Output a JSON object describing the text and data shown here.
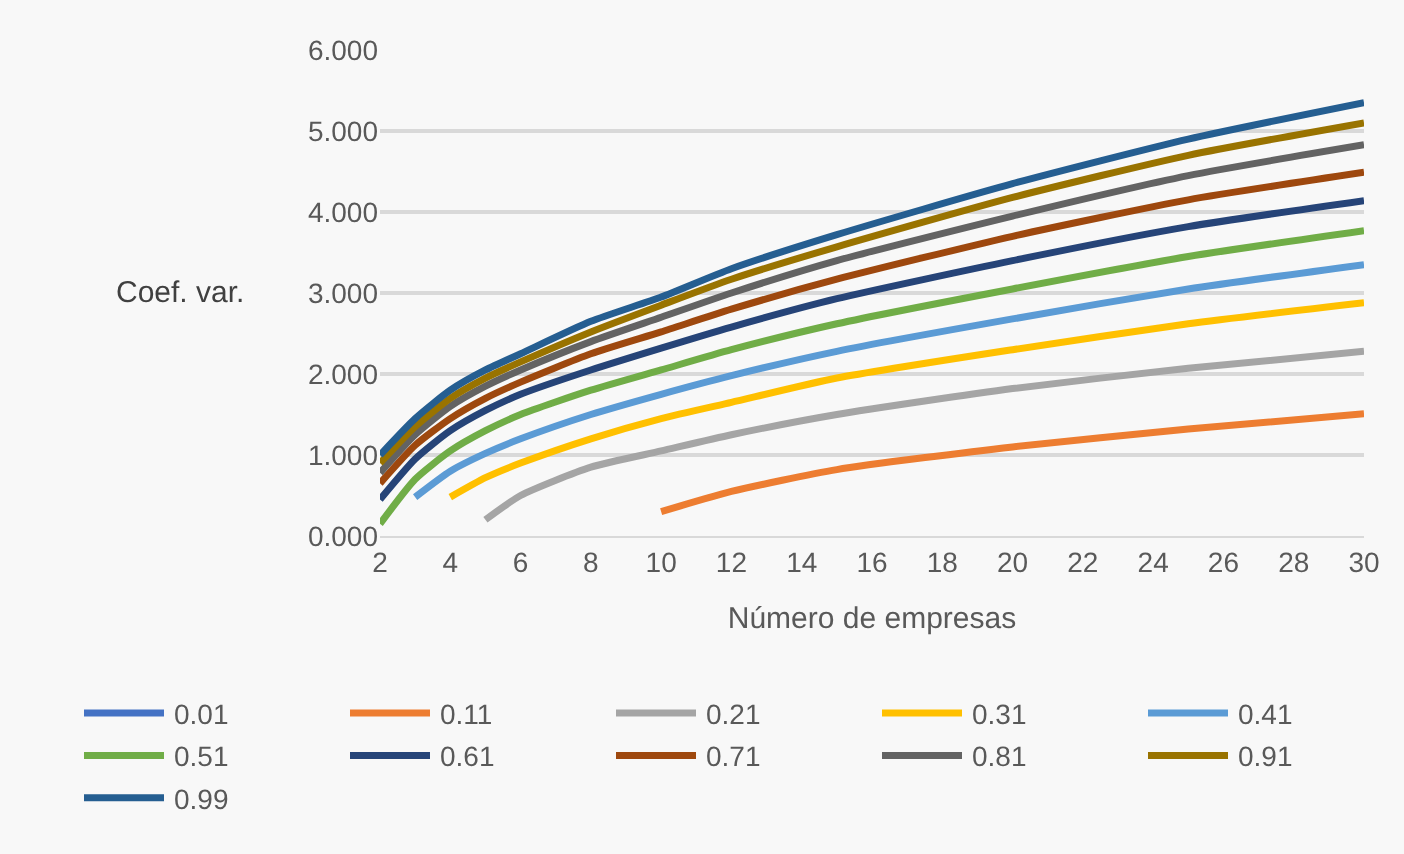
{
  "chart_data": {
    "type": "line",
    "xlabel": "Número de empresas",
    "ylabel": "Coef. var.",
    "x": [
      2,
      3,
      4,
      5,
      6,
      8,
      10,
      12,
      15,
      20,
      25,
      30
    ],
    "xlim": [
      2,
      30
    ],
    "xticks": [
      2,
      4,
      6,
      8,
      10,
      12,
      14,
      16,
      18,
      20,
      22,
      24,
      26,
      28,
      30
    ],
    "ylim": [
      0,
      6
    ],
    "yticks": [
      {
        "value": 0,
        "label": "0.000"
      },
      {
        "value": 1,
        "label": "1.000"
      },
      {
        "value": 2,
        "label": "2.000"
      },
      {
        "value": 3,
        "label": "3.000"
      },
      {
        "value": 4,
        "label": "4.000"
      },
      {
        "value": 5,
        "label": "5.000"
      },
      {
        "value": 6,
        "label": "6.000"
      }
    ],
    "grid": "y",
    "legend": "bottom",
    "marker": "none",
    "series": [
      {
        "name": "0.01",
        "color": "#4472c4",
        "values": [
          null,
          null,
          null,
          null,
          null,
          null,
          null,
          null,
          null,
          null,
          null,
          null
        ]
      },
      {
        "name": "0.11",
        "color": "#ed7d31",
        "values": [
          null,
          null,
          null,
          null,
          null,
          null,
          0.3,
          0.55,
          0.82,
          1.1,
          1.32,
          1.51
        ]
      },
      {
        "name": "0.21",
        "color": "#a5a5a5",
        "values": [
          null,
          null,
          null,
          0.2,
          0.5,
          0.85,
          1.05,
          1.25,
          1.5,
          1.82,
          2.07,
          2.28
        ]
      },
      {
        "name": "0.31",
        "color": "#ffc000",
        "values": [
          null,
          null,
          0.48,
          0.72,
          0.9,
          1.2,
          1.45,
          1.65,
          1.95,
          2.3,
          2.62,
          2.88
        ]
      },
      {
        "name": "0.41",
        "color": "#5b9bd5",
        "values": [
          null,
          0.48,
          0.8,
          1.02,
          1.2,
          1.5,
          1.75,
          1.98,
          2.28,
          2.68,
          3.05,
          3.35
        ]
      },
      {
        "name": "0.51",
        "color": "#70ad47",
        "values": [
          0.15,
          0.7,
          1.05,
          1.3,
          1.5,
          1.8,
          2.05,
          2.3,
          2.62,
          3.05,
          3.45,
          3.77
        ]
      },
      {
        "name": "0.61",
        "color": "#264478",
        "values": [
          0.45,
          0.95,
          1.3,
          1.55,
          1.75,
          2.05,
          2.32,
          2.58,
          2.93,
          3.4,
          3.82,
          4.14
        ]
      },
      {
        "name": "0.71",
        "color": "#9e480e",
        "values": [
          0.65,
          1.12,
          1.45,
          1.7,
          1.9,
          2.25,
          2.52,
          2.8,
          3.17,
          3.7,
          4.15,
          4.49
        ]
      },
      {
        "name": "0.81",
        "color": "#636363",
        "values": [
          0.78,
          1.25,
          1.6,
          1.85,
          2.05,
          2.4,
          2.7,
          3.0,
          3.4,
          3.95,
          4.45,
          4.83
        ]
      },
      {
        "name": "0.91",
        "color": "#997300",
        "values": [
          0.9,
          1.35,
          1.7,
          1.95,
          2.15,
          2.52,
          2.85,
          3.17,
          3.57,
          4.18,
          4.7,
          5.1
        ]
      },
      {
        "name": "0.99",
        "color": "#255e91",
        "values": [
          1.0,
          1.45,
          1.8,
          2.05,
          2.25,
          2.65,
          2.95,
          3.3,
          3.72,
          4.35,
          4.9,
          5.35
        ]
      }
    ]
  }
}
